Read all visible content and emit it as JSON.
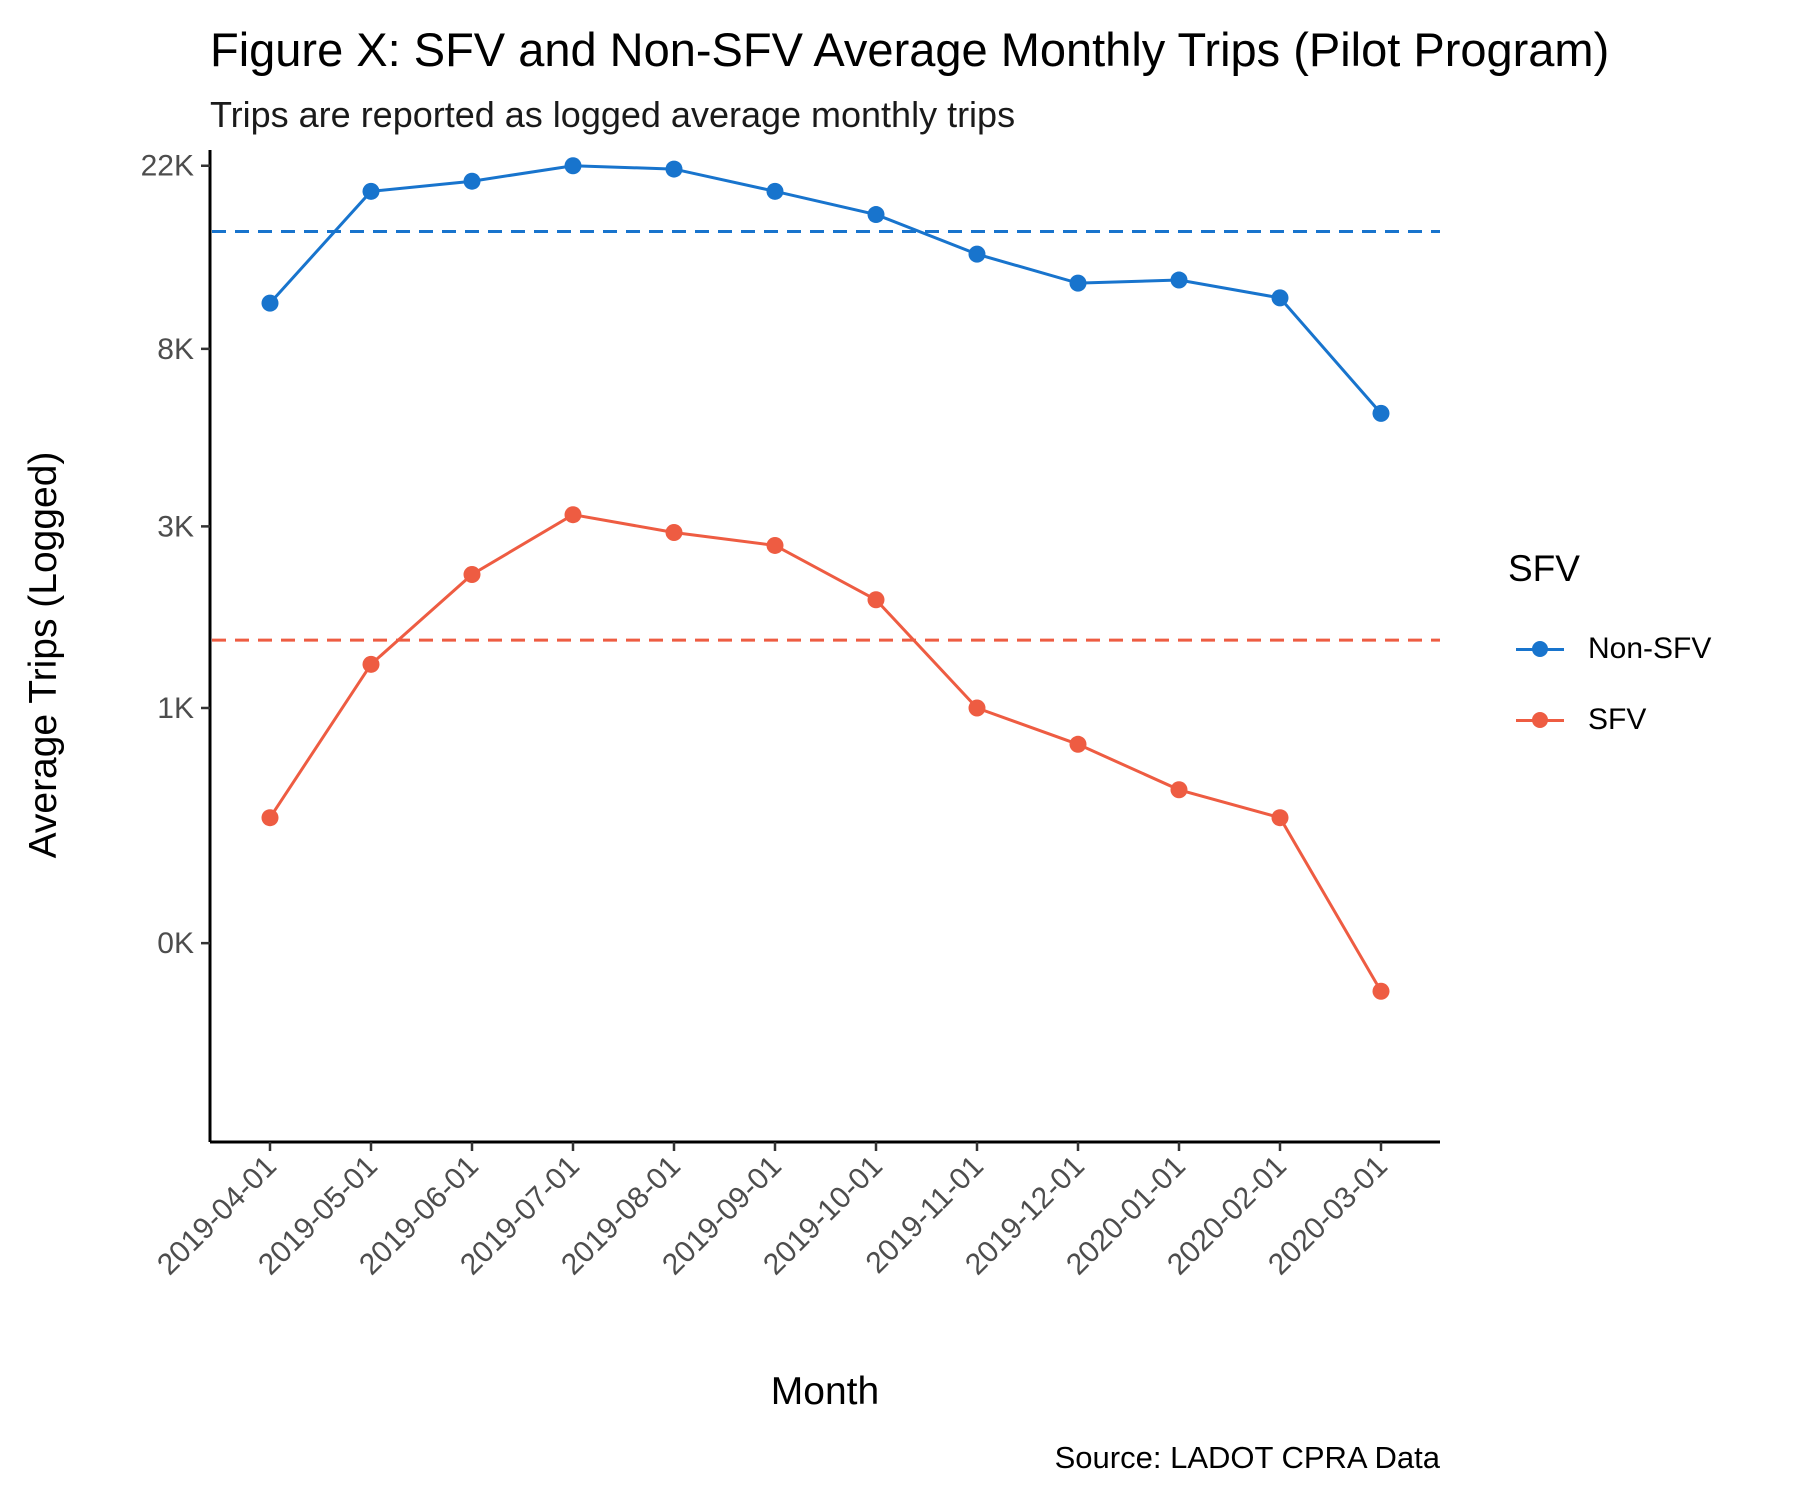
{
  "title": "Figure X: SFV and Non-SFV Average Monthly Trips (Pilot Program)",
  "subtitle": "Trips are reported as logged average monthly trips",
  "caption": "Source: LADOT CPRA Data",
  "chart_data": {
    "type": "line",
    "xlabel": "Month",
    "ylabel": "Average Trips (Logged)",
    "y_scale": "log",
    "y_range": [
      0.1,
      24.0
    ],
    "y_ticks": [
      {
        "value": 0.3,
        "label": "0K"
      },
      {
        "value": 1.1,
        "label": "1K"
      },
      {
        "value": 3.0,
        "label": "3K"
      },
      {
        "value": 8.0,
        "label": "8K"
      },
      {
        "value": 22.0,
        "label": "22K"
      }
    ],
    "categories": [
      "2019-04-01",
      "2019-05-01",
      "2019-06-01",
      "2019-07-01",
      "2019-08-01",
      "2019-09-01",
      "2019-10-01",
      "2019-11-01",
      "2019-12-01",
      "2020-01-01",
      "2020-02-01",
      "2020-03-01"
    ],
    "legend_title": "SFV",
    "legend_position": "right",
    "grid": false,
    "series": [
      {
        "name": "Non-SFV",
        "color": "#1874CD",
        "values": [
          10.3,
          19.1,
          20.2,
          22.0,
          21.6,
          19.1,
          16.8,
          13.5,
          11.5,
          11.7,
          10.6,
          5.6
        ],
        "mean": 15.3
      },
      {
        "name": "SFV",
        "color": "#EE5C42",
        "values": [
          0.6,
          1.4,
          2.3,
          3.2,
          2.9,
          2.7,
          2.0,
          1.1,
          0.9,
          0.7,
          0.6,
          0.23
        ],
        "mean": 1.6
      }
    ]
  }
}
